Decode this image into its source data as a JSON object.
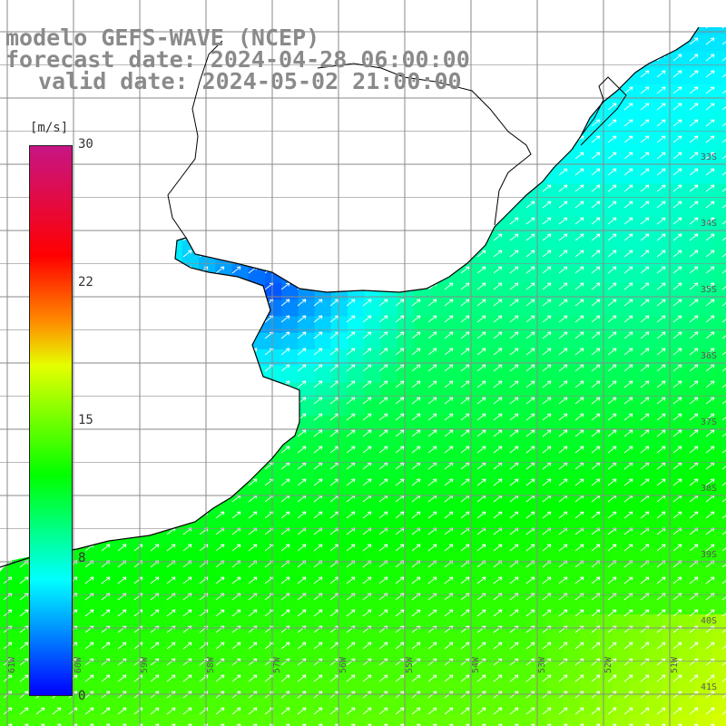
{
  "title": {
    "line1": "modelo GEFS-WAVE (NCEP)",
    "line2": "forecast date: 2024-04-28 06:00:00",
    "line3": "valid date: 2024-05-02 21:00:00"
  },
  "colorbar": {
    "unit": "[m/s]",
    "ticks": [
      "30",
      "22",
      "15",
      "8",
      "0"
    ],
    "colors": [
      "#0000ff",
      "#00ffff",
      "#00ff00",
      "#e5ff00",
      "#ff8c00",
      "#ff0000",
      "#c71585"
    ]
  },
  "grid": {
    "lat_labels": [
      "33S",
      "34S",
      "35S",
      "36S",
      "37S",
      "38S",
      "39S",
      "40S",
      "41S"
    ],
    "lon_labels": [
      "61W",
      "60W",
      "59W",
      "58W",
      "57W",
      "56W",
      "55W",
      "54W",
      "53W",
      "52W",
      "51W"
    ]
  },
  "colors": {
    "land": "#ffffff",
    "grid": "#8a8a8a",
    "coast": "#000000",
    "arrows": "#ffffff"
  },
  "map_data": {
    "field": "wind speed [m/s]",
    "lon_range": [
      -62,
      -50.5
    ],
    "lat_range": [
      -31.8,
      -41.5
    ],
    "value_range": [
      0,
      30
    ],
    "description": "Southern Brazil, Uruguay and Rio de la Plata coast; weak winds (~2-6 m/s) in the estuary, 8-12 m/s near coast, up to ~16 m/s offshore in the southeast; arrows point north-east."
  }
}
